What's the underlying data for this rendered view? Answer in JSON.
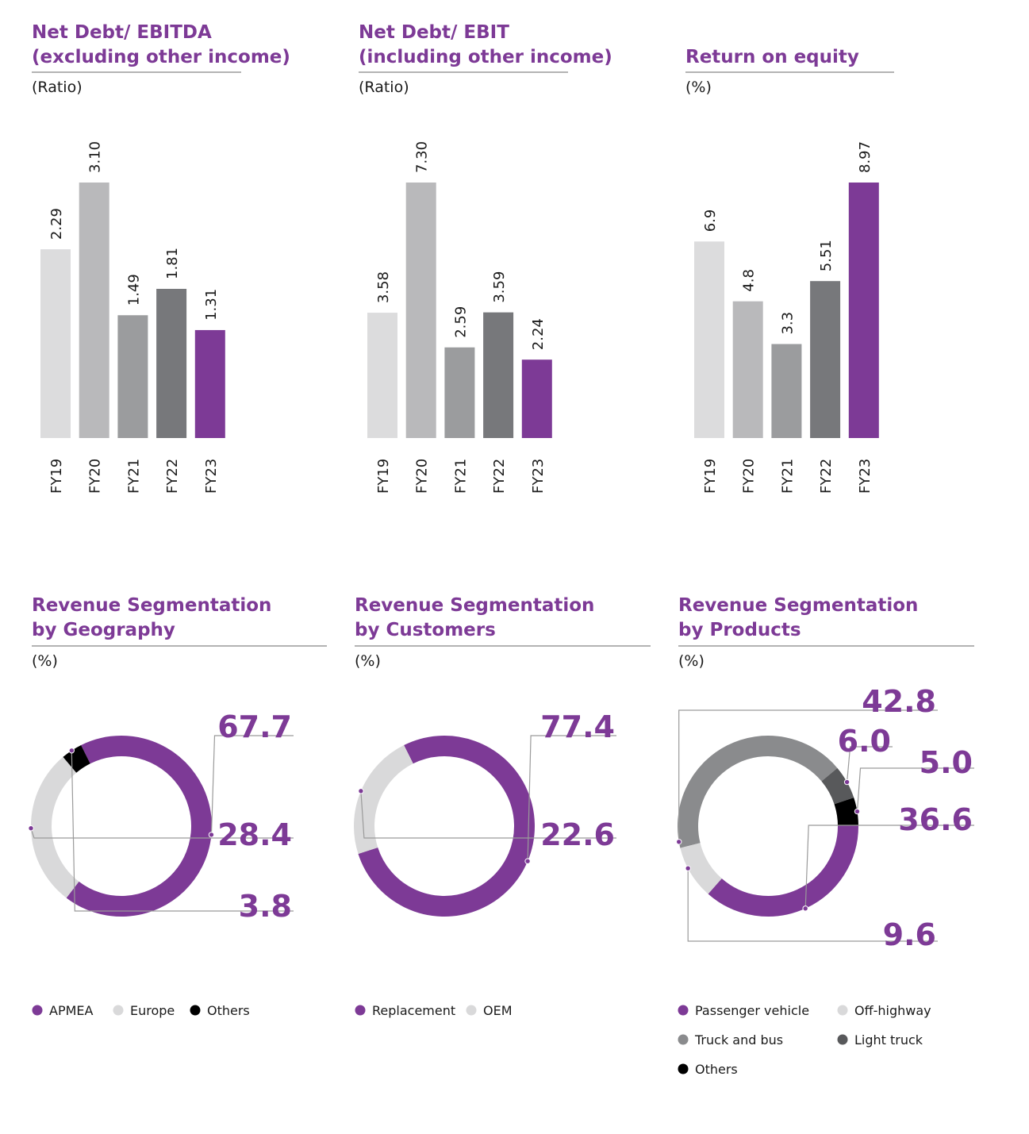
{
  "colors": {
    "accent": "#7d3a96",
    "fy19": "#dcdcdd",
    "fy20": "#b9b9bb",
    "fy21": "#9b9c9e",
    "fy22": "#77787b",
    "black": "#000000",
    "europe": "#d9d9da",
    "truck_and_bus": "#8a8b8d",
    "light_truck": "#58595b"
  },
  "chart_data": [
    {
      "type": "bar",
      "title_lines": [
        "Net Debt/ EBITDA",
        "(excluding other income)"
      ],
      "unit": "(Ratio)",
      "categories": [
        "FY19",
        "FY20",
        "FY21",
        "FY22",
        "FY23"
      ],
      "values": [
        2.29,
        3.1,
        1.49,
        1.81,
        1.31
      ],
      "value_labels": [
        "2.29",
        "3.10",
        "1.49",
        "1.81",
        "1.31"
      ],
      "ylim": [
        0,
        3.1
      ]
    },
    {
      "type": "bar",
      "title_lines": [
        "Net Debt/ EBIT",
        "(including other income)"
      ],
      "unit": "(Ratio)",
      "categories": [
        "FY19",
        "FY20",
        "FY21",
        "FY22",
        "FY23"
      ],
      "values": [
        3.58,
        7.3,
        2.59,
        3.59,
        2.24
      ],
      "value_labels": [
        "3.58",
        "7.30",
        "2.59",
        "3.59",
        "2.24"
      ],
      "ylim": [
        0,
        7.3
      ]
    },
    {
      "type": "bar",
      "title_lines": [
        "",
        "Return on equity"
      ],
      "unit": "(%)",
      "categories": [
        "FY19",
        "FY20",
        "FY21",
        "FY22",
        "FY23"
      ],
      "values": [
        6.9,
        4.8,
        3.3,
        5.51,
        8.97
      ],
      "value_labels": [
        "6.9",
        "4.8",
        "3.3",
        "5.51",
        "8.97"
      ],
      "ylim": [
        0,
        8.97
      ]
    },
    {
      "type": "pie",
      "title_lines": [
        "Revenue Segmentation",
        "by Geography"
      ],
      "unit": "(%)",
      "segments": [
        {
          "name": "APMEA",
          "value": 67.7,
          "label": "67.7",
          "color": "#7d3a96"
        },
        {
          "name": "Europe",
          "value": 28.4,
          "label": "28.4",
          "color": "#d9d9da"
        },
        {
          "name": "Others",
          "value": 3.8,
          "label": "3.8",
          "color": "#000000"
        }
      ],
      "legend": [
        "APMEA",
        "Europe",
        "Others"
      ]
    },
    {
      "type": "pie",
      "title_lines": [
        "Revenue Segmentation",
        "by Customers"
      ],
      "unit": "(%)",
      "segments": [
        {
          "name": "Replacement",
          "value": 77.4,
          "label": "77.4",
          "color": "#7d3a96"
        },
        {
          "name": "OEM",
          "value": 22.6,
          "label": "22.6",
          "color": "#d9d9da"
        }
      ],
      "legend": [
        "Replacement",
        "OEM"
      ]
    },
    {
      "type": "pie",
      "title_lines": [
        "Revenue Segmentation",
        "by Products"
      ],
      "unit": "(%)",
      "segments": [
        {
          "name": "Truck and bus",
          "value": 42.8,
          "label": "42.8",
          "color": "#8a8b8d"
        },
        {
          "name": "Light truck",
          "value": 6.0,
          "label": "6.0",
          "color": "#58595b"
        },
        {
          "name": "Others",
          "value": 5.0,
          "label": "5.0",
          "color": "#000000"
        },
        {
          "name": "Passenger vehicle",
          "value": 36.6,
          "label": "36.6",
          "color": "#7d3a96"
        },
        {
          "name": "Off-highway",
          "value": 9.6,
          "label": "9.6",
          "color": "#d9d9da"
        }
      ],
      "legend": [
        "Passenger vehicle",
        "Off-highway",
        "Truck and bus",
        "Light truck",
        "Others"
      ]
    }
  ]
}
